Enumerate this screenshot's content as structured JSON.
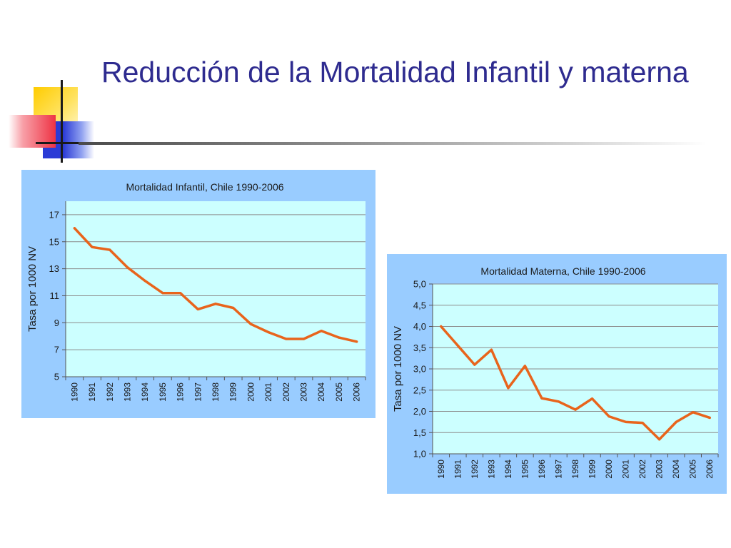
{
  "slide": {
    "title": "Reducción de la Mortalidad Infantil y materna"
  },
  "colors": {
    "title": "#2e2b8f",
    "panel_bg": "#99ccff",
    "plot_bg": "#ccffff",
    "line": "#e8641c",
    "deco_yellow": "#ffcc00",
    "deco_blue": "#2b3bd6",
    "deco_red": "#ee3344"
  },
  "chart_data": [
    {
      "id": "infantil",
      "type": "line",
      "title": "Mortalidad Infantil, Chile 1990-2006",
      "ylabel": "Tasa por 1000 NV",
      "xlabel": "",
      "ylim": [
        5,
        18
      ],
      "yticks": [
        5,
        7,
        9,
        11,
        13,
        15,
        17
      ],
      "ytick_labels": [
        "5",
        "7",
        "9",
        "11",
        "13",
        "15",
        "17"
      ],
      "grid": true,
      "categories": [
        "1990",
        "1991",
        "1992",
        "1993",
        "1994",
        "1995",
        "1996",
        "1997",
        "1998",
        "1999",
        "2000",
        "2001",
        "2002",
        "2003",
        "2004",
        "2005",
        "2006"
      ],
      "series": [
        {
          "values": [
            16.0,
            14.6,
            14.4,
            13.1,
            12.1,
            11.2,
            11.2,
            10.0,
            10.4,
            10.1,
            8.9,
            8.3,
            7.8,
            7.8,
            8.4,
            7.9,
            7.6
          ]
        }
      ]
    },
    {
      "id": "materna",
      "type": "line",
      "title": "Mortalidad Materna, Chile 1990-2006",
      "ylabel": "Tasa por 1000 NV",
      "xlabel": "",
      "ylim": [
        1.0,
        5.0
      ],
      "yticks": [
        1.0,
        1.5,
        2.0,
        2.5,
        3.0,
        3.5,
        4.0,
        4.5,
        5.0
      ],
      "ytick_labels": [
        "1,0",
        "1,5",
        "2,0",
        "2,5",
        "3,0",
        "3,5",
        "4,0",
        "4,5",
        "5,0"
      ],
      "grid": true,
      "categories": [
        "1990",
        "1991",
        "1992",
        "1993",
        "1994",
        "1995",
        "1996",
        "1997",
        "1998",
        "1999",
        "2000",
        "2001",
        "2002",
        "2003",
        "2004",
        "2005",
        "2006"
      ],
      "series": [
        {
          "values": [
            4.0,
            3.55,
            3.1,
            3.45,
            2.55,
            3.07,
            2.31,
            2.23,
            2.04,
            2.3,
            1.88,
            1.75,
            1.73,
            1.34,
            1.75,
            1.98,
            1.85
          ]
        }
      ]
    }
  ]
}
